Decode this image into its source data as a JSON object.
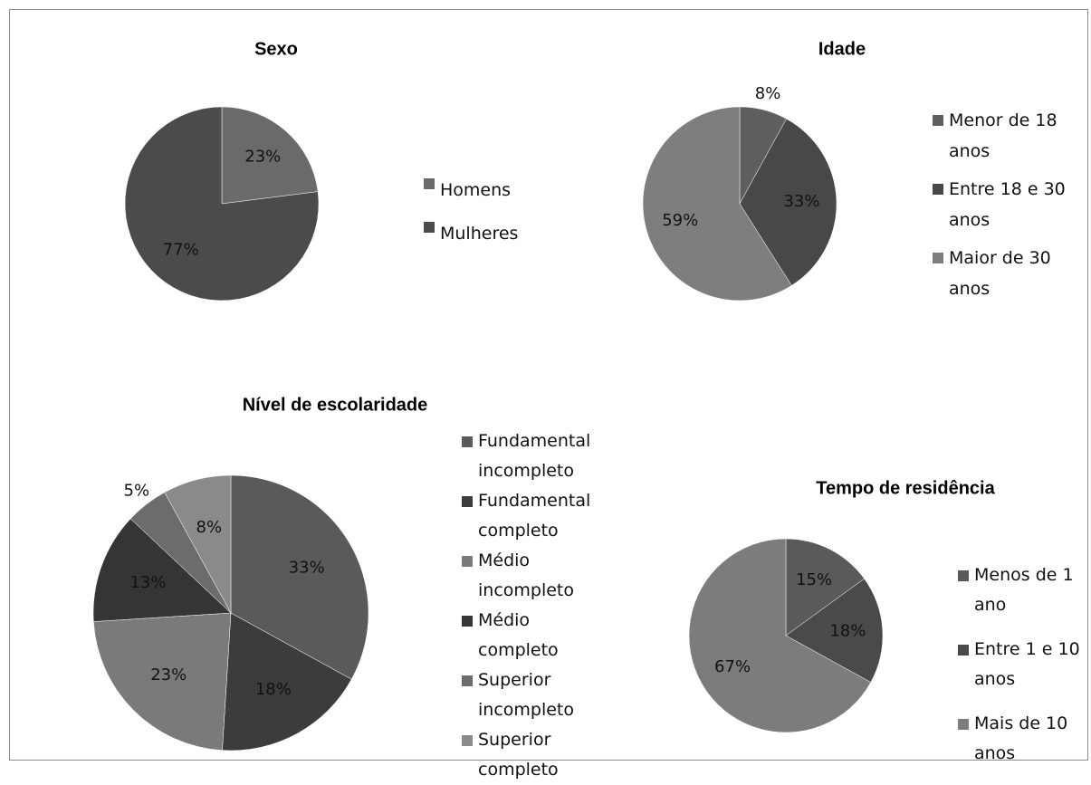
{
  "chart_data": [
    {
      "type": "pie",
      "title": "Sexo",
      "categories": [
        "Homens",
        "Mulheres"
      ],
      "values": [
        23,
        77
      ],
      "value_labels": [
        "23%",
        "77%"
      ],
      "colors": [
        "#6a6a6a",
        "#4b4b4b"
      ]
    },
    {
      "type": "pie",
      "title": "Idade",
      "categories": [
        "Menor de 18 anos",
        "Entre 18 e 30 anos",
        "Maior de 30 anos"
      ],
      "values": [
        8,
        33,
        59
      ],
      "value_labels": [
        "8%",
        "33%",
        "59%"
      ],
      "colors": [
        "#5e5e5e",
        "#484848",
        "#7e7e7e"
      ]
    },
    {
      "type": "pie",
      "title": "Nível de escolaridade",
      "categories": [
        "Fundamental incompleto",
        "Fundamental completo",
        "Médio incompleto",
        "Médio completo",
        "Superior incompleto",
        "Superior completo"
      ],
      "values": [
        33,
        18,
        23,
        13,
        5,
        8
      ],
      "value_labels": [
        "33%",
        "18%",
        "23%",
        "13%",
        "5%",
        "8%"
      ],
      "colors": [
        "#5a5a5a",
        "#3c3c3c",
        "#7a7a7a",
        "#353535",
        "#6c6c6c",
        "#8a8a8a"
      ]
    },
    {
      "type": "pie",
      "title": "Tempo de residência",
      "categories": [
        "Menos de 1 ano",
        "Entre 1 e 10 anos",
        "Mais de 10 anos"
      ],
      "values": [
        15,
        18,
        67
      ],
      "value_labels": [
        "15%",
        "18%",
        "67%"
      ],
      "colors": [
        "#5a5a5a",
        "#4a4a4a",
        "#7c7c7c"
      ]
    }
  ]
}
